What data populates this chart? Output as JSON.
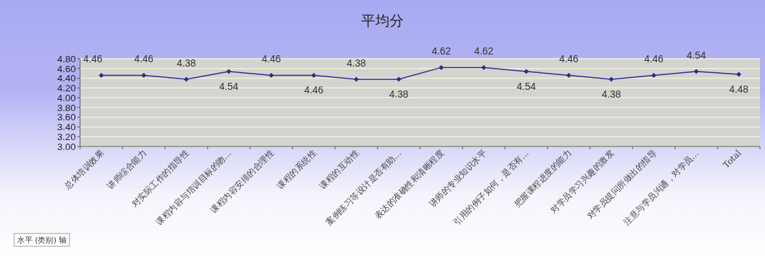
{
  "chart_data": {
    "type": "line",
    "title": "平均分",
    "categories": [
      "总体培训效果",
      "讲师综合能力",
      "对实际工作的指导性",
      "课程内容与培训目标的吻…",
      "课程内容安排的合理性",
      "课程的系统性",
      "课程的互动性",
      "案例练习等设计是否有助…",
      "表达的准确性和清晰程度",
      "讲师的专业知识水平",
      "引用的例子如何，是否有…",
      "把握课程进度的能力",
      "对学员学习兴趣的激发",
      "对学员提问所做出的指导",
      "注意与学员沟通，对学员…",
      "Total"
    ],
    "series": [
      {
        "color": "#2b2b8c",
        "values": [
          4.46,
          4.46,
          4.38,
          4.54,
          4.46,
          4.46,
          4.38,
          4.38,
          4.62,
          4.62,
          4.54,
          4.46,
          4.38,
          4.46,
          4.54,
          4.48
        ]
      }
    ],
    "ylim": [
      3.0,
      4.8
    ],
    "yticks": [
      {
        "value": 3.0,
        "label": "3.00"
      },
      {
        "value": 3.2,
        "label": "3.20"
      },
      {
        "value": 3.4,
        "label": "3.40"
      },
      {
        "value": 3.6,
        "label": "3.60"
      },
      {
        "value": 3.8,
        "label": "3.80"
      },
      {
        "value": 4.0,
        "label": "4.00"
      },
      {
        "value": 4.2,
        "label": "4.20"
      },
      {
        "value": 4.4,
        "label": "4.40"
      },
      {
        "value": 4.6,
        "label": "4.60"
      },
      {
        "value": 4.8,
        "label": "4.80"
      }
    ],
    "grid": "y",
    "marker": "diamond",
    "line_style": "solid",
    "data_labels": true,
    "annotations": [
      "水平 (类别) 轴"
    ]
  }
}
